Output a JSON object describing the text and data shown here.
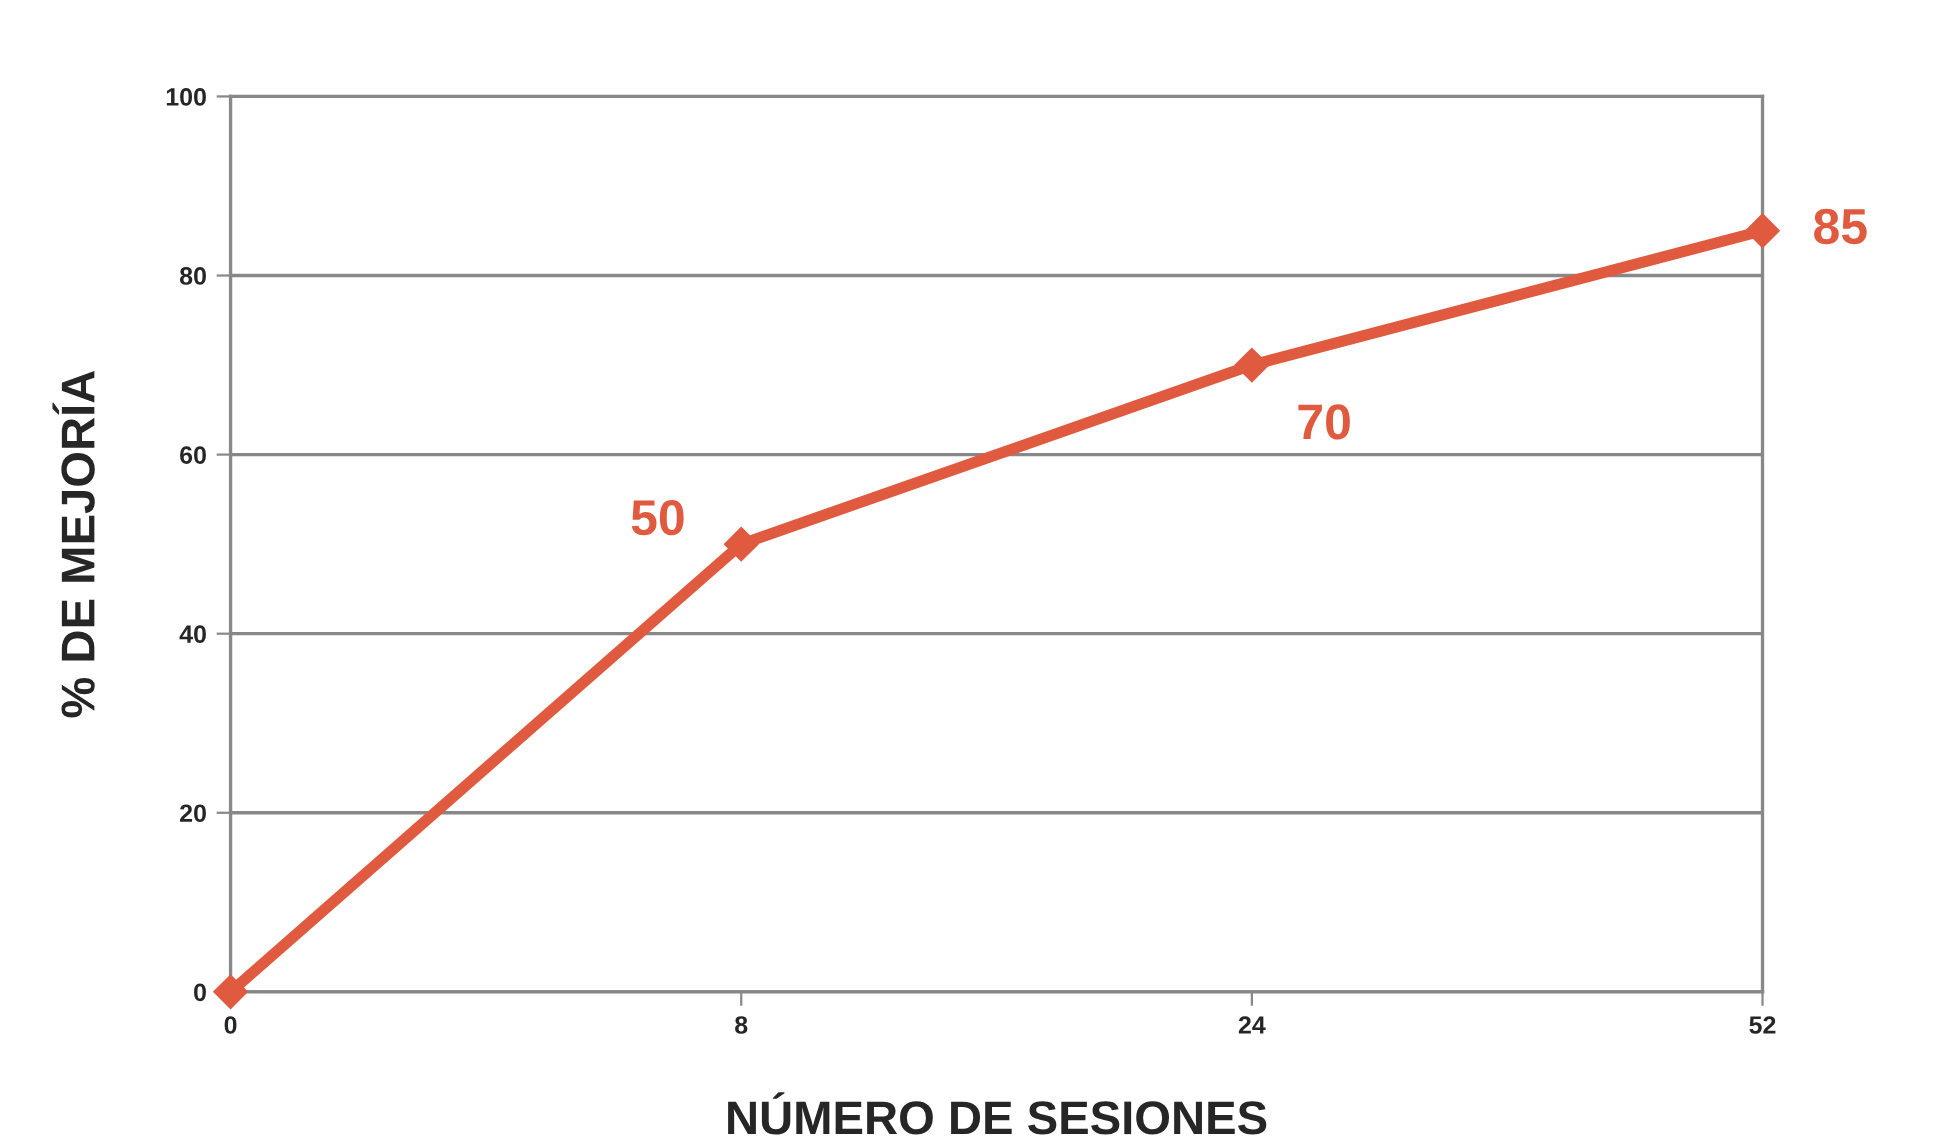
{
  "chart_data": {
    "type": "line",
    "xlabel": "NÚMERO DE SESIONES",
    "ylabel": "% DE MEJORÍA",
    "categories": [
      "0",
      "8",
      "24",
      "52"
    ],
    "series": [
      {
        "color": "#e05a3f",
        "values": [
          0,
          50,
          70,
          85
        ],
        "value_labels": [
          null,
          "50",
          "70",
          "85"
        ]
      }
    ],
    "ylim": [
      0,
      100
    ],
    "yticks": [
      0,
      20,
      40,
      60,
      80,
      100
    ],
    "grid": "y",
    "marker": "diamond",
    "line_style": "solid",
    "legend": false
  }
}
